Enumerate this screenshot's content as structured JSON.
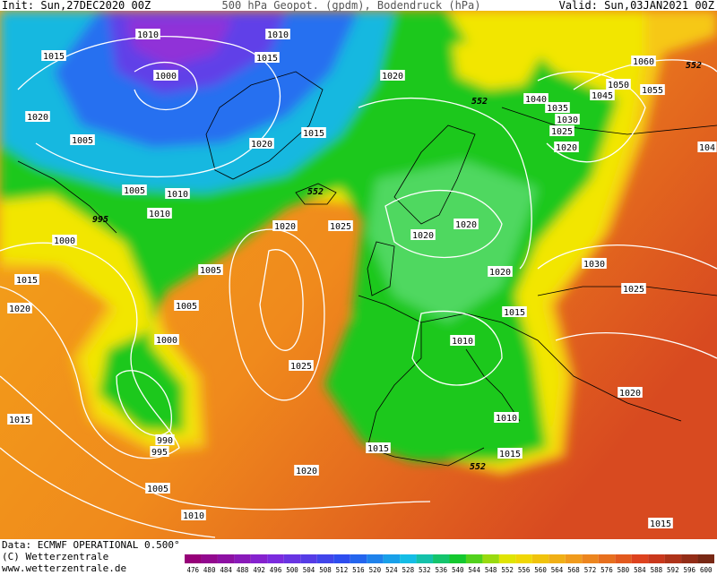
{
  "header": {
    "init": "Init: Sun,27DEC2020 00Z",
    "title": "500 hPa Geopot. (gpdm), Bodendruck (hPa)",
    "valid": "Valid: Sun,03JAN2021 00Z"
  },
  "map": {
    "isobar_labels": [
      1010,
      1010,
      1015,
      1015,
      1000,
      1020,
      1020,
      1015,
      1005,
      1020,
      552,
      1040,
      1035,
      1030,
      1025,
      1020,
      1060,
      552,
      1050,
      1045,
      1055,
      104,
      1005,
      1010,
      552,
      1010,
      995,
      1020,
      1025,
      1020,
      1020,
      1000,
      1005,
      1020,
      1030,
      1015,
      1025,
      1005,
      1020,
      1015,
      1000,
      1010,
      1025,
      1020,
      1015,
      1010,
      990,
      995,
      1015,
      1015,
      552,
      1020,
      1005,
      1010,
      1015
    ]
  },
  "footer": {
    "data": "Data: ECMWF OPERATIONAL 0.500°",
    "copyright": "(C) Wetterzentrale",
    "url": "www.wetterzentrale.de"
  },
  "colorbar": {
    "labels": [
      476,
      480,
      484,
      488,
      492,
      496,
      500,
      504,
      508,
      512,
      516,
      520,
      524,
      528,
      532,
      536,
      540,
      544,
      548,
      552,
      556,
      560,
      564,
      568,
      572,
      576,
      580,
      584,
      588,
      592,
      596,
      600
    ]
  }
}
